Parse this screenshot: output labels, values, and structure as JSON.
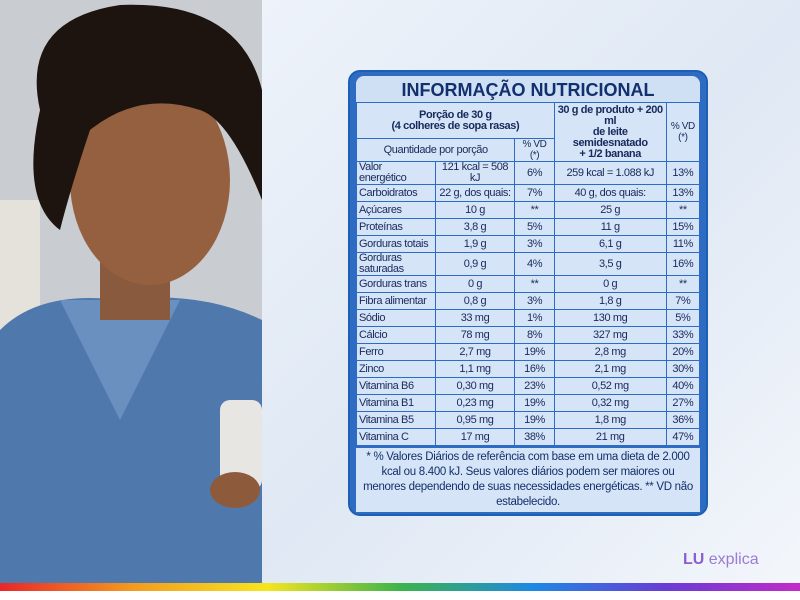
{
  "title": "INFORMAÇÃO NUTRICIONAL",
  "header": {
    "portion": "Porção de 30 g\n(4 colheres de sopa rasas)",
    "with_milk": "30 g de produto + 200 ml\nde leite semidesnatado\n+ 1/2 banana",
    "vd_with_milk": "% VD (*)",
    "quantity": "Quantidade por porção",
    "vd": "% VD (*)"
  },
  "rows": [
    [
      "Valor\nenergético",
      "121 kcal = 508 kJ",
      "6%",
      "259 kcal = 1.088 kJ",
      "13%"
    ],
    [
      "Carboidratos",
      "22 g, dos quais:",
      "7%",
      "40 g, dos quais:",
      "13%"
    ],
    [
      "Açúcares",
      "10 g",
      "**",
      "25 g",
      "**"
    ],
    [
      "Proteínas",
      "3,8 g",
      "5%",
      "11 g",
      "15%"
    ],
    [
      "Gorduras totais",
      "1,9 g",
      "3%",
      "6,1 g",
      "11%"
    ],
    [
      "Gorduras\nsaturadas",
      "0,9 g",
      "4%",
      "3,5 g",
      "16%"
    ],
    [
      "Gorduras trans",
      "0 g",
      "**",
      "0 g",
      "**"
    ],
    [
      "Fibra alimentar",
      "0,8 g",
      "3%",
      "1,8 g",
      "7%"
    ],
    [
      "Sódio",
      "33 mg",
      "1%",
      "130 mg",
      "5%"
    ],
    [
      "Cálcio",
      "78 mg",
      "8%",
      "327 mg",
      "33%"
    ],
    [
      "Ferro",
      "2,7 mg",
      "19%",
      "2,8 mg",
      "20%"
    ],
    [
      "Zinco",
      "1,1 mg",
      "16%",
      "2,1 mg",
      "30%"
    ],
    [
      "Vitamina B6",
      "0,30 mg",
      "23%",
      "0,52 mg",
      "40%"
    ],
    [
      "Vitamina B1",
      "0,23 mg",
      "19%",
      "0,32 mg",
      "27%"
    ],
    [
      "Vitamina B5",
      "0,95 mg",
      "19%",
      "1,8 mg",
      "36%"
    ],
    [
      "Vitamina C",
      "17 mg",
      "38%",
      "21 mg",
      "47%"
    ]
  ],
  "footnote": "* % Valores Diários de referência com base em uma dieta de 2.000 kcal ou 8.400 kJ. Seus valores diários podem ser maiores ou menores dependendo de suas necessidades energéticas. ** VD não estabelecido.",
  "logo": {
    "brand": "LU",
    "text": "explica"
  }
}
